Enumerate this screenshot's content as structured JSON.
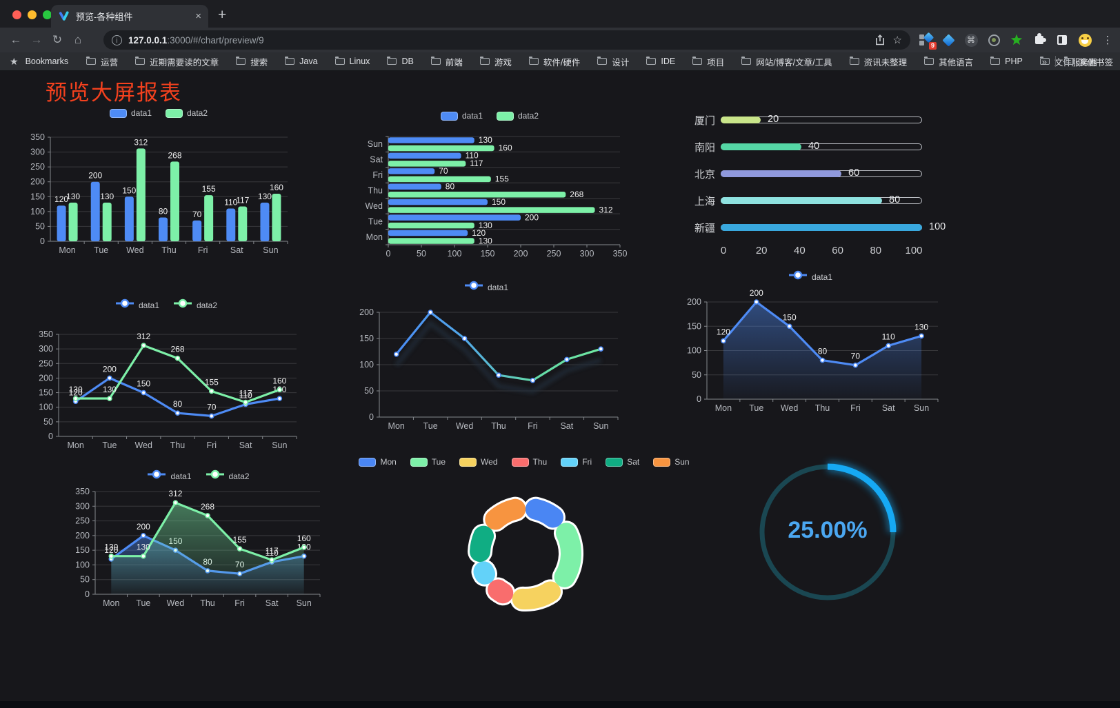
{
  "browser": {
    "tab_title": "预览-各种组件",
    "close_tab": "×",
    "new_tab": "+",
    "url_host": "127.0.0.1",
    "url_rest": ":3000/#/chart/preview/9",
    "extension_badge": "9",
    "bookmarks_label": "Bookmarks",
    "bookmarks": [
      "运营",
      "近期需要读的文章",
      "搜索",
      "Java",
      "Linux",
      "DB",
      "前端",
      "游戏",
      "软件/硬件",
      "设计",
      "IDE",
      "项目",
      "网站/博客/文章/工具",
      "资讯未整理",
      "其他语言",
      "PHP",
      "文件服务器"
    ],
    "bookmarks_more": "»",
    "other_bookmarks": "其他书签"
  },
  "page": {
    "title": "预览大屏报表",
    "title_color": "#f4411e",
    "background": "#17171b"
  },
  "chart_data": [
    {
      "id": "bar-grouped-vertical",
      "type": "bar",
      "categories": [
        "Mon",
        "Tue",
        "Wed",
        "Thu",
        "Fri",
        "Sat",
        "Sun"
      ],
      "series": [
        {
          "name": "data1",
          "color": "#4e8bf5",
          "values": [
            120,
            200,
            150,
            80,
            70,
            110,
            130
          ]
        },
        {
          "name": "data2",
          "color": "#7df0a8",
          "values": [
            130,
            130,
            312,
            268,
            155,
            117,
            160
          ]
        }
      ],
      "ylim": [
        0,
        350
      ],
      "ystep": 50,
      "value_labels": true,
      "legend_position": "top",
      "grid": true
    },
    {
      "id": "bar-grouped-horizontal",
      "type": "hbar",
      "categories": [
        "Mon",
        "Tue",
        "Wed",
        "Thu",
        "Fri",
        "Sat",
        "Sun"
      ],
      "series": [
        {
          "name": "data1",
          "color": "#4e8bf5",
          "values": [
            120,
            200,
            150,
            80,
            70,
            110,
            130
          ]
        },
        {
          "name": "data2",
          "color": "#7df0a8",
          "values": [
            130,
            130,
            312,
            268,
            155,
            117,
            160
          ]
        }
      ],
      "xlim": [
        0,
        350
      ],
      "xstep": 50,
      "value_labels": true,
      "legend_position": "top",
      "grid": true
    },
    {
      "id": "city-progress",
      "type": "progress",
      "rows": [
        {
          "label": "厦门",
          "value": 20,
          "color": "#c9e58a"
        },
        {
          "label": "南阳",
          "value": 40,
          "color": "#55d7a5"
        },
        {
          "label": "北京",
          "value": 60,
          "color": "#9099dd"
        },
        {
          "label": "上海",
          "value": 80,
          "color": "#8fe2e0"
        },
        {
          "label": "新疆",
          "value": 100,
          "color": "#39a8de"
        }
      ],
      "max": 100,
      "xticks": [
        0,
        20,
        40,
        60,
        80,
        100
      ]
    },
    {
      "id": "line-two-series",
      "type": "line",
      "categories": [
        "Mon",
        "Tue",
        "Wed",
        "Thu",
        "Fri",
        "Sat",
        "Sun"
      ],
      "series": [
        {
          "name": "data1",
          "color": "#4e8bf5",
          "values": [
            120,
            200,
            150,
            80,
            70,
            110,
            130
          ]
        },
        {
          "name": "data2",
          "color": "#7df0a8",
          "values": [
            130,
            130,
            312,
            268,
            155,
            117,
            160
          ]
        }
      ],
      "ylim": [
        0,
        350
      ],
      "ystep": 50,
      "value_labels": true,
      "legend_position": "top",
      "grid": true
    },
    {
      "id": "line-gradient",
      "type": "line",
      "categories": [
        "Mon",
        "Tue",
        "Wed",
        "Thu",
        "Fri",
        "Sat",
        "Sun"
      ],
      "series": [
        {
          "name": "data1",
          "color": "#4e8bf5",
          "gradient": [
            "#4a8cf5",
            "#52a8e8",
            "#63d9a8",
            "#6fe8a2"
          ],
          "values": [
            120,
            200,
            150,
            80,
            70,
            110,
            130
          ]
        }
      ],
      "ylim": [
        0,
        200
      ],
      "ystep": 50,
      "value_labels": false,
      "shadow": true,
      "legend_position": "top",
      "grid": true
    },
    {
      "id": "line-area",
      "type": "line",
      "categories": [
        "Mon",
        "Tue",
        "Wed",
        "Thu",
        "Fri",
        "Sat",
        "Sun"
      ],
      "series": [
        {
          "name": "data1",
          "color": "#4e8bf5",
          "area": true,
          "values": [
            120,
            200,
            150,
            80,
            70,
            110,
            130
          ]
        }
      ],
      "ylim": [
        0,
        200
      ],
      "ystep": 50,
      "value_labels": true,
      "legend_position": "top",
      "grid": true
    },
    {
      "id": "line-area-two",
      "type": "line",
      "categories": [
        "Mon",
        "Tue",
        "Wed",
        "Thu",
        "Fri",
        "Sat",
        "Sun"
      ],
      "series": [
        {
          "name": "data1",
          "color": "#4e8bf5",
          "area": true,
          "values": [
            120,
            200,
            150,
            80,
            70,
            110,
            130
          ]
        },
        {
          "name": "data2",
          "color": "#7df0a8",
          "area": true,
          "values": [
            130,
            130,
            312,
            268,
            155,
            117,
            160
          ]
        }
      ],
      "ylim": [
        0,
        350
      ],
      "ystep": 50,
      "value_labels": true,
      "legend_position": "top",
      "grid": true
    },
    {
      "id": "donut-week",
      "type": "donut",
      "items": [
        {
          "name": "Mon",
          "value": 120,
          "color": "#4a86f3"
        },
        {
          "name": "Tue",
          "value": 200,
          "color": "#7df0a8"
        },
        {
          "name": "Wed",
          "value": 150,
          "color": "#f6d25f"
        },
        {
          "name": "Thu",
          "value": 80,
          "color": "#f96d6d"
        },
        {
          "name": "Fri",
          "value": 70,
          "color": "#63d2f9"
        },
        {
          "name": "Sat",
          "value": 110,
          "color": "#10ad83"
        },
        {
          "name": "Sun",
          "value": 130,
          "color": "#f79440"
        }
      ],
      "legend_position": "top"
    },
    {
      "id": "gauge-percent",
      "type": "gauge",
      "value": 25,
      "display": "25.00%",
      "color": "#16a9f4",
      "track_color": "#1a4752",
      "text_color": "#4ba7f1"
    }
  ]
}
